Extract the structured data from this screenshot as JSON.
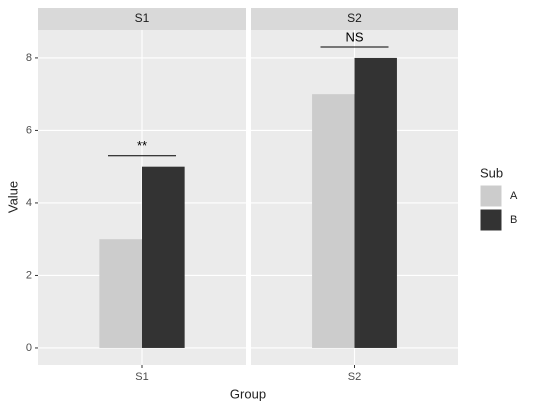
{
  "chart_data": {
    "type": "bar",
    "xlabel": "Group",
    "ylabel": "Value",
    "legend_title": "Sub",
    "ylim": [
      -0.47,
      8.77
    ],
    "yticks": [
      0,
      2,
      4,
      6,
      8
    ],
    "grid": true,
    "facets": [
      {
        "title": "S1",
        "categories": [
          "S1"
        ],
        "series": [
          {
            "name": "A",
            "color": "#cccccc",
            "values": [
              3
            ]
          },
          {
            "name": "B",
            "color": "#333333",
            "values": [
              5
            ]
          }
        ],
        "annotation": {
          "text": "**",
          "y": 5.3
        }
      },
      {
        "title": "S2",
        "categories": [
          "S2"
        ],
        "series": [
          {
            "name": "A",
            "color": "#cccccc",
            "values": [
              7
            ]
          },
          {
            "name": "B",
            "color": "#333333",
            "values": [
              8
            ]
          }
        ],
        "annotation": {
          "text": "NS",
          "y": 8.3
        }
      }
    ]
  }
}
